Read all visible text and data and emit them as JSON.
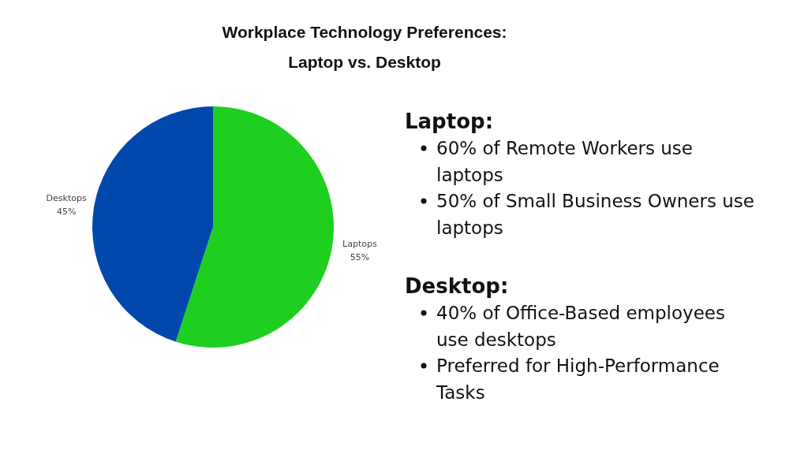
{
  "chart_data": [
    {
      "type": "pie",
      "title": "Workplace Technology Preferences:\nLaptop vs. Desktop",
      "categories": [
        "Laptops",
        "Desktops"
      ],
      "values": [
        55,
        45
      ],
      "colors": [
        "#1fcf1f",
        "#0048ab"
      ],
      "value_labels": [
        "55%",
        "45%"
      ]
    },
    {
      "type": "other",
      "title": "Laptop:",
      "annotations": [
        "60% of Remote Workers use laptops",
        "50% of Small Business Owners use laptops"
      ]
    },
    {
      "type": "other",
      "title": "Desktop:",
      "annotations": [
        "40% of Office-Based employees use desktops",
        "Preferred for High-Performance Tasks"
      ]
    }
  ]
}
